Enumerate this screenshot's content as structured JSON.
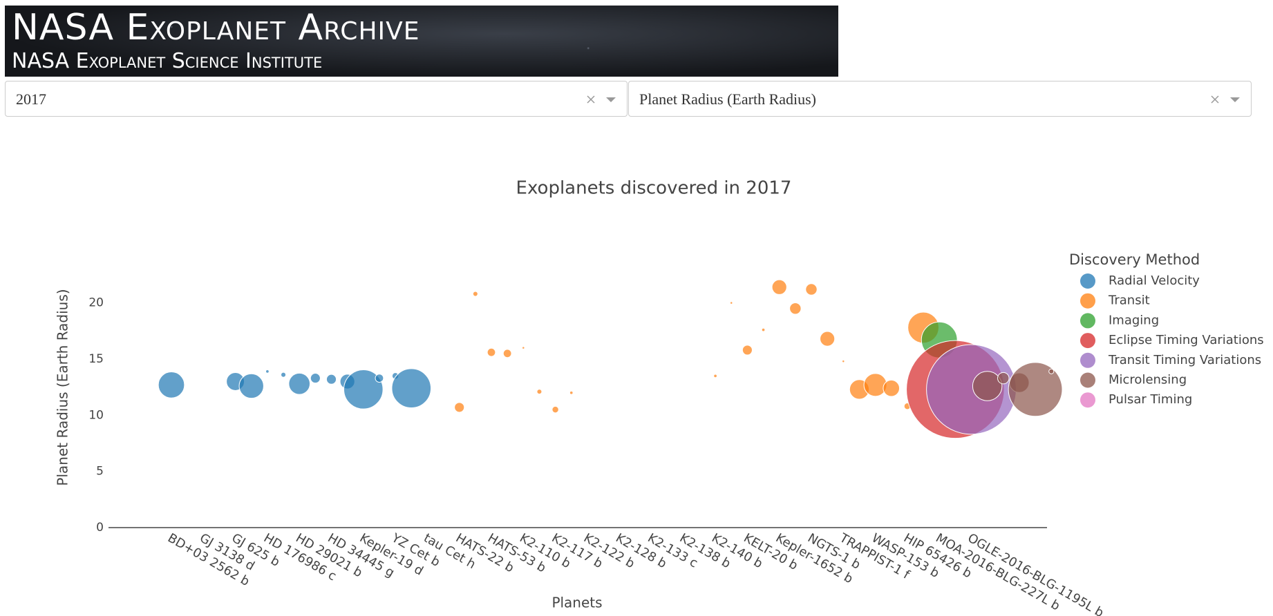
{
  "header": {
    "title": "NASA Exoplanet Archive",
    "subtitle": "NASA Exoplanet Science Institute"
  },
  "controls": {
    "year": "2017",
    "variable": "Planet Radius (Earth Radius)"
  },
  "chart_data": {
    "type": "scatter",
    "title": "Exoplanets discovered in 2017",
    "x_label": "Planets",
    "y_label": "Planet Radius (Earth Radius)",
    "legend_title": "Discovery Method",
    "ylim": [
      0,
      23.6
    ],
    "yticks": [
      0,
      5,
      10,
      15,
      20
    ],
    "grid": false,
    "categories": [
      "BD+03 2562 b",
      null,
      "GJ 3138 d",
      null,
      "GJ 625 b",
      null,
      "HD 176986 c",
      null,
      "HD 29021 b",
      null,
      "HD 34445 g",
      null,
      "Kepler-19 d",
      null,
      "YZ Cet b",
      null,
      "tau Cet h",
      null,
      "HATS-22 b",
      null,
      "HATS-53 b",
      null,
      "K2-110 b",
      null,
      "K2-117 b",
      null,
      "K2-122 b",
      null,
      "K2-128 b",
      null,
      "K2-133 c",
      null,
      "K2-138 b",
      null,
      "K2-140 b",
      null,
      "KELT-20 b",
      null,
      "Kepler-1652 b",
      null,
      "NGTS-1 b",
      null,
      "TRAPPIST-1 f",
      null,
      "WASP-153 b",
      null,
      "HIP 65426 b",
      null,
      "MOA-2016-BLG-227L b",
      null,
      "OGLE-2016-BLG-1195L b",
      null,
      null,
      null,
      null,
      null
    ],
    "series": [
      {
        "name": "Radial Velocity",
        "color": "#1f77b4",
        "values": [
          12.7,
          null,
          null,
          null,
          13,
          12.6,
          13.9,
          13.6,
          12.8,
          13.3,
          13.2,
          13,
          12.3,
          13.3,
          13.5,
          12.4,
          null,
          null,
          null,
          null,
          null,
          null,
          null,
          null,
          null,
          null,
          null,
          null,
          null,
          null,
          null,
          null,
          null,
          null,
          null,
          null,
          null,
          null,
          null,
          null,
          null,
          null,
          null,
          null,
          null,
          null,
          null,
          null,
          null,
          null,
          null,
          null,
          null,
          null,
          null,
          null
        ],
        "sizes": [
          16,
          null,
          null,
          null,
          11,
          15,
          2,
          3,
          13,
          6,
          6,
          9,
          24,
          5,
          4,
          24,
          null,
          null,
          null,
          null,
          null,
          null,
          null,
          null,
          null,
          null,
          null,
          null,
          null,
          null,
          null,
          null,
          null,
          null,
          null,
          null,
          null,
          null,
          null,
          null,
          null,
          null,
          null,
          null,
          null,
          null,
          null,
          null,
          null,
          null,
          null,
          null,
          null,
          null,
          null,
          null
        ]
      },
      {
        "name": "Transit",
        "color": "#ff7f0e",
        "values": [
          null,
          null,
          null,
          null,
          null,
          null,
          null,
          null,
          null,
          null,
          null,
          null,
          null,
          null,
          null,
          null,
          null,
          null,
          10.7,
          20.8,
          15.6,
          15.5,
          16,
          12.1,
          10.5,
          12,
          null,
          null,
          null,
          null,
          null,
          null,
          null,
          null,
          13.5,
          20,
          15.8,
          17.6,
          21.4,
          19.5,
          21.2,
          16.8,
          14.8,
          12.3,
          12.7,
          12.4,
          10.8,
          17.8,
          null,
          null,
          null,
          null,
          null,
          null,
          null,
          null
        ],
        "sizes": [
          null,
          null,
          null,
          null,
          null,
          null,
          null,
          null,
          null,
          null,
          null,
          null,
          null,
          null,
          null,
          null,
          null,
          null,
          6,
          3,
          5,
          5,
          1.5,
          3,
          4,
          2,
          null,
          null,
          null,
          null,
          null,
          null,
          null,
          null,
          2,
          1.5,
          6,
          2,
          9,
          7,
          7,
          9,
          1.5,
          12,
          14,
          10,
          4,
          19,
          null,
          null,
          null,
          null,
          null,
          null,
          null,
          null
        ]
      },
      {
        "name": "Imaging",
        "color": "#2ca02c",
        "values": [
          null,
          null,
          null,
          null,
          null,
          null,
          null,
          null,
          null,
          null,
          null,
          null,
          null,
          null,
          null,
          null,
          null,
          null,
          null,
          null,
          null,
          null,
          null,
          null,
          null,
          null,
          null,
          null,
          null,
          null,
          null,
          null,
          null,
          null,
          null,
          null,
          null,
          null,
          null,
          null,
          null,
          null,
          null,
          null,
          null,
          null,
          null,
          null,
          16.7,
          null,
          null,
          null,
          null,
          null,
          null,
          null
        ],
        "sizes": [
          null,
          null,
          null,
          null,
          null,
          null,
          null,
          null,
          null,
          null,
          null,
          null,
          null,
          null,
          null,
          null,
          null,
          null,
          null,
          null,
          null,
          null,
          null,
          null,
          null,
          null,
          null,
          null,
          null,
          null,
          null,
          null,
          null,
          null,
          null,
          null,
          null,
          null,
          null,
          null,
          null,
          null,
          null,
          null,
          null,
          null,
          null,
          null,
          22,
          null,
          null,
          null,
          null,
          null,
          null,
          null
        ]
      },
      {
        "name": "Eclipse Timing Variations",
        "color": "#d62728",
        "values": [
          null,
          null,
          null,
          null,
          null,
          null,
          null,
          null,
          null,
          null,
          null,
          null,
          null,
          null,
          null,
          null,
          null,
          null,
          null,
          null,
          null,
          null,
          null,
          null,
          null,
          null,
          null,
          null,
          null,
          null,
          null,
          null,
          null,
          null,
          null,
          null,
          null,
          null,
          null,
          null,
          null,
          null,
          null,
          null,
          null,
          null,
          null,
          null,
          null,
          12.3,
          null,
          null,
          null,
          null,
          null,
          null
        ],
        "sizes": [
          null,
          null,
          null,
          null,
          null,
          null,
          null,
          null,
          null,
          null,
          null,
          null,
          null,
          null,
          null,
          null,
          null,
          null,
          null,
          null,
          null,
          null,
          null,
          null,
          null,
          null,
          null,
          null,
          null,
          null,
          null,
          null,
          null,
          null,
          null,
          null,
          null,
          null,
          null,
          null,
          null,
          null,
          null,
          null,
          null,
          null,
          null,
          null,
          null,
          60,
          null,
          null,
          null,
          null,
          null,
          null
        ]
      },
      {
        "name": "Transit Timing Variations",
        "color": "#9467bd",
        "values": [
          null,
          null,
          null,
          null,
          null,
          null,
          null,
          null,
          null,
          null,
          null,
          null,
          null,
          null,
          null,
          null,
          null,
          null,
          null,
          null,
          null,
          null,
          null,
          null,
          null,
          null,
          null,
          null,
          null,
          null,
          null,
          null,
          null,
          null,
          null,
          null,
          null,
          null,
          null,
          null,
          null,
          null,
          null,
          null,
          null,
          null,
          null,
          null,
          null,
          null,
          12.3,
          null,
          null,
          null,
          null,
          null
        ],
        "sizes": [
          null,
          null,
          null,
          null,
          null,
          null,
          null,
          null,
          null,
          null,
          null,
          null,
          null,
          null,
          null,
          null,
          null,
          null,
          null,
          null,
          null,
          null,
          null,
          null,
          null,
          null,
          null,
          null,
          null,
          null,
          null,
          null,
          null,
          null,
          null,
          null,
          null,
          null,
          null,
          null,
          null,
          null,
          null,
          null,
          null,
          null,
          null,
          null,
          null,
          null,
          55,
          null,
          null,
          null,
          null,
          null
        ]
      },
      {
        "name": "Microlensing",
        "color": "#8c564b",
        "values": [
          null,
          null,
          null,
          null,
          null,
          null,
          null,
          null,
          null,
          null,
          null,
          null,
          null,
          null,
          null,
          null,
          null,
          null,
          null,
          null,
          null,
          null,
          null,
          null,
          null,
          null,
          null,
          null,
          null,
          null,
          null,
          null,
          null,
          null,
          null,
          null,
          null,
          null,
          null,
          null,
          null,
          null,
          null,
          null,
          null,
          null,
          null,
          null,
          null,
          null,
          null,
          12.6,
          13.3,
          12.9,
          12.3,
          13.9
        ],
        "sizes": [
          null,
          null,
          null,
          null,
          null,
          null,
          null,
          null,
          null,
          null,
          null,
          null,
          null,
          null,
          null,
          null,
          null,
          null,
          null,
          null,
          null,
          null,
          null,
          null,
          null,
          null,
          null,
          null,
          null,
          null,
          null,
          null,
          null,
          null,
          null,
          null,
          null,
          null,
          null,
          null,
          null,
          null,
          null,
          null,
          null,
          null,
          null,
          null,
          null,
          null,
          null,
          18,
          7,
          12,
          33,
          3
        ]
      },
      {
        "name": "Pulsar Timing",
        "color": "#e377c2",
        "values": [
          null,
          null,
          null,
          null,
          null,
          null,
          null,
          null,
          null,
          null,
          null,
          null,
          null,
          null,
          null,
          null,
          null,
          null,
          null,
          null,
          null,
          null,
          null,
          null,
          null,
          null,
          null,
          null,
          null,
          null,
          null,
          null,
          null,
          null,
          null,
          null,
          null,
          null,
          null,
          null,
          null,
          null,
          null,
          null,
          null,
          null,
          null,
          null,
          null,
          null,
          null,
          null,
          null,
          null,
          null,
          null
        ],
        "sizes": [
          null,
          null,
          null,
          null,
          null,
          null,
          null,
          null,
          null,
          null,
          null,
          null,
          null,
          null,
          null,
          null,
          null,
          null,
          null,
          null,
          null,
          null,
          null,
          null,
          null,
          null,
          null,
          null,
          null,
          null,
          null,
          null,
          null,
          null,
          null,
          null,
          null,
          null,
          null,
          null,
          null,
          null,
          null,
          null,
          null,
          null,
          null,
          null,
          null,
          null,
          null,
          null,
          null,
          null,
          null,
          null
        ]
      }
    ]
  }
}
